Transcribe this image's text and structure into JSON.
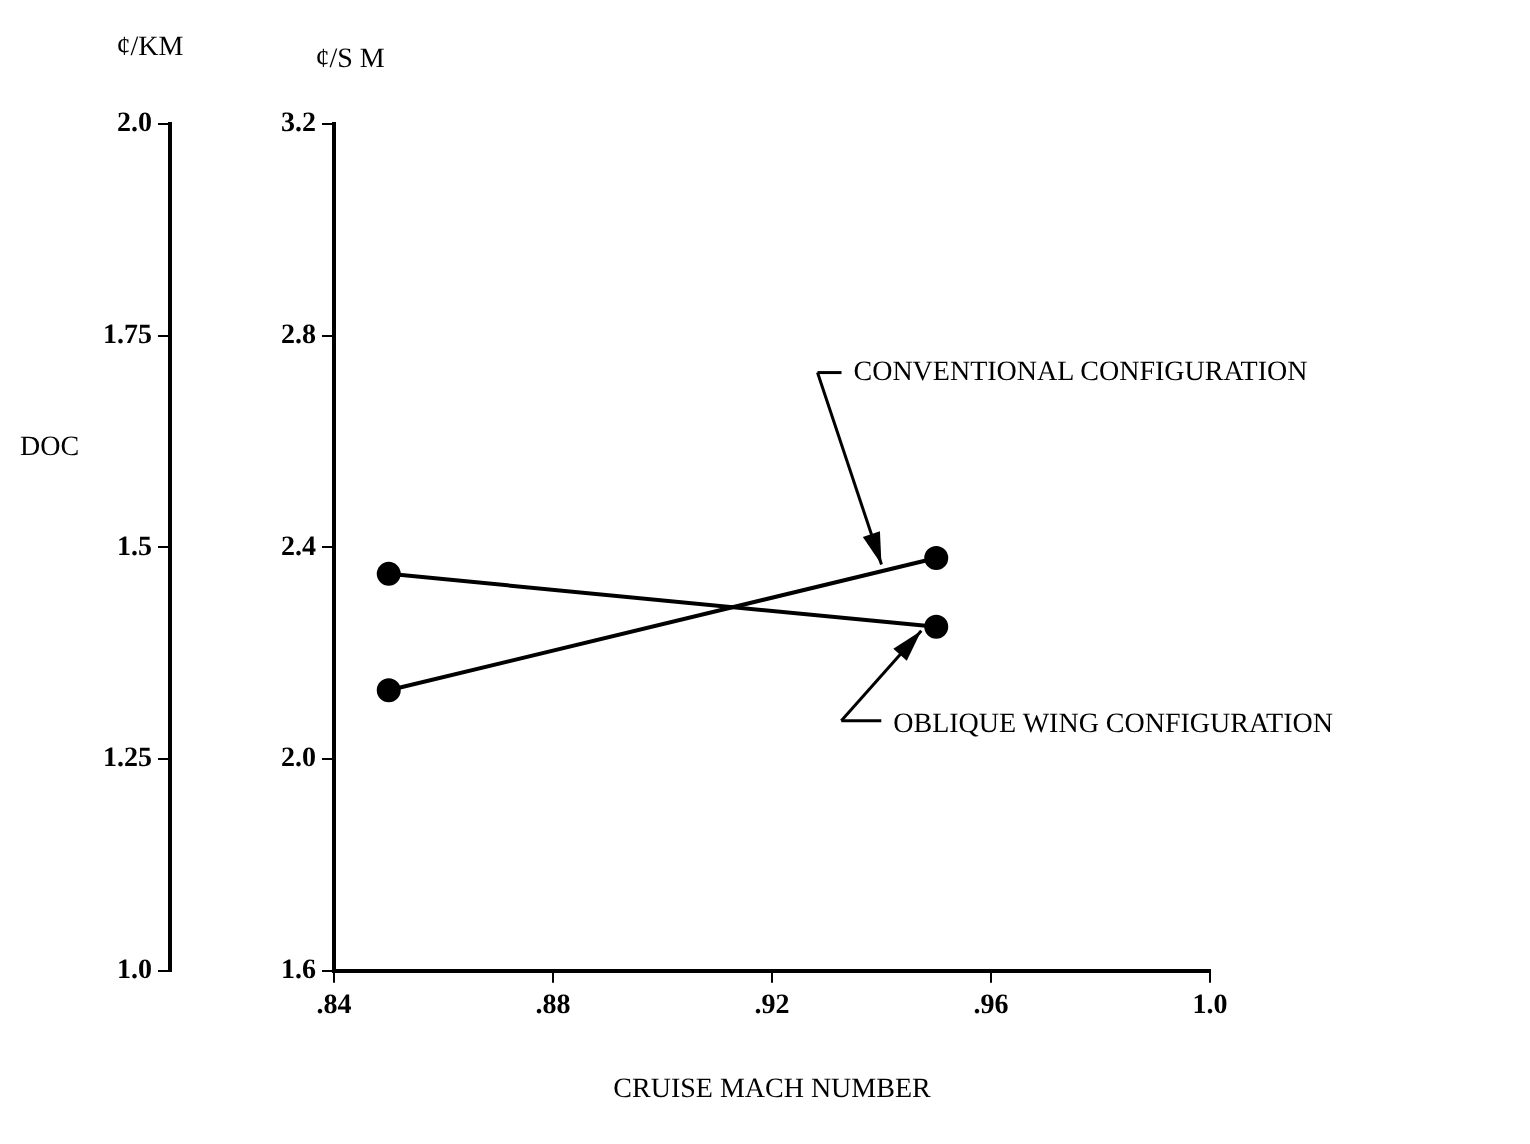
{
  "chart_data": {
    "type": "line",
    "xlabel": "CRUISE MACH NUMBER",
    "ylabel": "¢/S M",
    "y2label": "¢/KM",
    "x": [
      0.85,
      0.95
    ],
    "series": [
      {
        "color": "#000000",
        "values": [
          2.35,
          2.25
        ]
      },
      {
        "color": "#000000",
        "values": [
          2.13,
          2.38
        ]
      }
    ],
    "xlim": [
      0.84,
      1.0
    ],
    "xticks": [
      {
        "value": 0.84,
        "label": ".84"
      },
      {
        "value": 0.88,
        "label": ".88"
      },
      {
        "value": 0.92,
        "label": ".92"
      },
      {
        "value": 0.96,
        "label": ".96"
      },
      {
        "value": 1.0,
        "label": "1.0"
      }
    ],
    "ylim": [
      1.6,
      3.2
    ],
    "yticks": [
      {
        "value": 1.6,
        "label": "1.6"
      },
      {
        "value": 2.0,
        "label": "2.0"
      },
      {
        "value": 2.4,
        "label": "2.4"
      },
      {
        "value": 2.8,
        "label": "2.8"
      },
      {
        "value": 3.2,
        "label": "3.2"
      }
    ],
    "y2lim": [
      1.0,
      2.0
    ],
    "y2ticks": [
      {
        "value": 1.0,
        "label": "1.0"
      },
      {
        "value": 1.25,
        "label": "1.25"
      },
      {
        "value": 1.5,
        "label": "1.5"
      },
      {
        "value": 1.75,
        "label": "1.75"
      },
      {
        "value": 2.0,
        "label": "2.0"
      }
    ],
    "annotations": [
      "DOC",
      {
        "text": "CONVENTIONAL CONFIGURATION",
        "x": 0.94,
        "y": 2.36
      },
      {
        "text": "OBLIQUE WING CONFIGURATION",
        "x": 0.948,
        "y": 2.25
      }
    ],
    "marker": "circle",
    "line_style": "solid",
    "grid": false,
    "legend": false
  }
}
